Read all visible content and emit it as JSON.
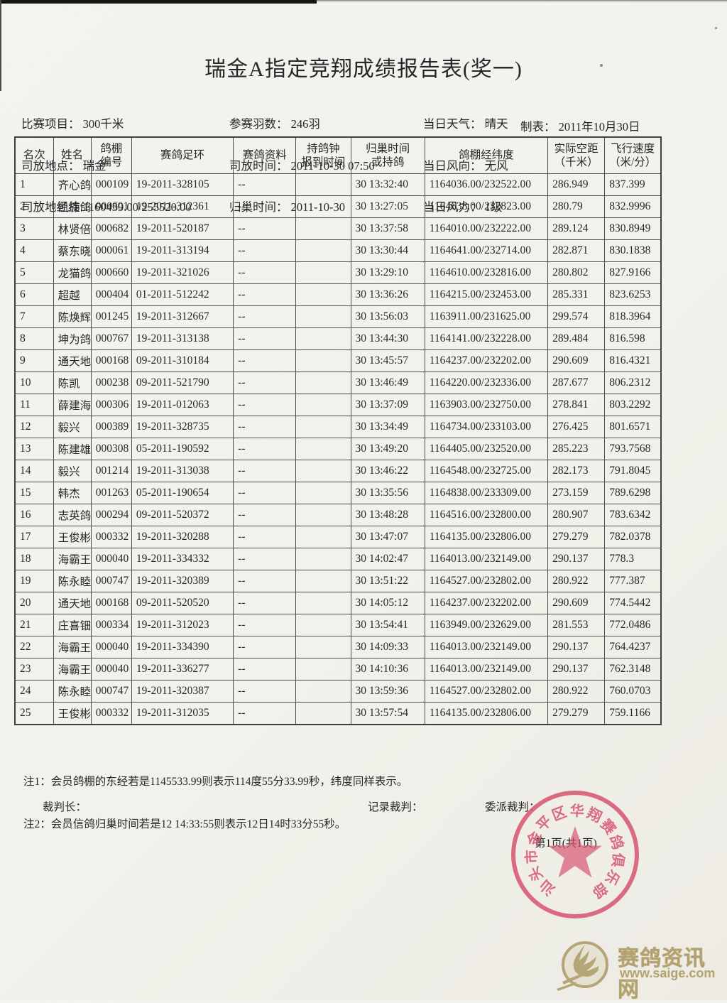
{
  "page": {
    "title": "瑞金A指定竞翔成绩报告表(奖一)",
    "page_number": "第1页(共1页)"
  },
  "info": {
    "r1c1": "比赛项目： 300千米",
    "r2c1": "司放地点： 瑞金",
    "r3c1": "司放地经纬:1160439.00/255520.00",
    "r1c2": "参赛羽数： 246羽",
    "r2c2": "司放时间： 2011-10-30 07:50",
    "r3c2": "归巢时间： 2011-10-30",
    "r1c3": "当日天气： 晴天",
    "r2c3": "当日风向： 无风",
    "r3c3": "当日风力： 1级",
    "made_on": "制表： 2011年10月30日"
  },
  "table": {
    "headers": [
      "名次",
      "姓名",
      "鸽棚\n编号",
      "赛鸽足环",
      "赛鸽资料",
      "持鸽钟\n报到时间",
      "归巢时间\n或持鸽",
      "鸽棚经纬度",
      "实际空距\n（千米）",
      "飞行速度\n（米/分）"
    ],
    "rows": [
      [
        "1",
        "齐心鸽",
        "000109",
        "19-2011-328105",
        "--",
        "",
        "30 13:32:40",
        "1164036.00/232522.00",
        "286.949",
        "837.399"
      ],
      [
        "2",
        "凯旋鸽",
        "000601",
        "19-2011-312361",
        "--",
        "",
        "30 13:27:05",
        "1164638.00/232823.00",
        "280.79",
        "832.9996"
      ],
      [
        "3",
        "林贤倍",
        "000682",
        "19-2011-520187",
        "--",
        "",
        "30 13:37:58",
        "1164010.00/232222.00",
        "289.124",
        "830.8949"
      ],
      [
        "4",
        "蔡东晓",
        "000061",
        "19-2011-313194",
        "--",
        "",
        "30 13:30:44",
        "1164641.00/232714.00",
        "282.871",
        "830.1838"
      ],
      [
        "5",
        "龙猫鸽",
        "000660",
        "19-2011-321026",
        "--",
        "",
        "30 13:29:10",
        "1164610.00/232816.00",
        "280.802",
        "827.9166"
      ],
      [
        "6",
        "超越",
        "000404",
        "01-2011-512242",
        "--",
        "",
        "30 13:36:26",
        "1164215.00/232453.00",
        "285.331",
        "823.6253"
      ],
      [
        "7",
        "陈焕辉",
        "001245",
        "19-2011-312667",
        "--",
        "",
        "30 13:56:03",
        "1163911.00/231625.00",
        "299.574",
        "818.3964"
      ],
      [
        "8",
        "坤为鸽",
        "000767",
        "19-2011-313138",
        "--",
        "",
        "30 13:44:30",
        "1164141.00/232228.00",
        "289.484",
        "816.598"
      ],
      [
        "9",
        "通天地",
        "000168",
        "09-2011-310184",
        "--",
        "",
        "30 13:45:57",
        "1164237.00/232202.00",
        "290.609",
        "816.4321"
      ],
      [
        "10",
        "陈凯",
        "000238",
        "09-2011-521790",
        "--",
        "",
        "30 13:46:49",
        "1164220.00/232336.00",
        "287.677",
        "806.2312"
      ],
      [
        "11",
        "薛建海",
        "000306",
        "19-2011-012063",
        "--",
        "",
        "30 13:37:09",
        "1163903.00/232750.00",
        "278.841",
        "803.2292"
      ],
      [
        "12",
        "毅兴",
        "000389",
        "19-2011-328735",
        "--",
        "",
        "30 13:34:49",
        "1164734.00/233103.00",
        "276.425",
        "801.6571"
      ],
      [
        "13",
        "陈建雄",
        "000308",
        "05-2011-190592",
        "--",
        "",
        "30 13:49:20",
        "1164405.00/232520.00",
        "285.223",
        "793.7568"
      ],
      [
        "14",
        "毅兴",
        "001214",
        "19-2011-313038",
        "--",
        "",
        "30 13:46:22",
        "1164548.00/232725.00",
        "282.173",
        "791.8045"
      ],
      [
        "15",
        "韩杰",
        "001263",
        "05-2011-190654",
        "--",
        "",
        "30 13:35:56",
        "1164838.00/233309.00",
        "273.159",
        "789.6298"
      ],
      [
        "16",
        "志英鸽",
        "000294",
        "09-2011-520372",
        "--",
        "",
        "30 13:48:28",
        "1164516.00/232800.00",
        "280.907",
        "783.6342"
      ],
      [
        "17",
        "王俊彬",
        "000332",
        "19-2011-320288",
        "--",
        "",
        "30 13:47:07",
        "1164135.00/232806.00",
        "279.279",
        "782.0378"
      ],
      [
        "18",
        "海霸王",
        "000040",
        "19-2011-334332",
        "--",
        "",
        "30 14:02:47",
        "1164013.00/232149.00",
        "290.137",
        "778.3"
      ],
      [
        "19",
        "陈永睦",
        "000747",
        "19-2011-320389",
        "--",
        "",
        "30 13:51:22",
        "1164527.00/232802.00",
        "280.922",
        "777.387"
      ],
      [
        "20",
        "通天地",
        "000168",
        "09-2011-520520",
        "--",
        "",
        "30 14:05:12",
        "1164237.00/232202.00",
        "290.609",
        "774.5442"
      ],
      [
        "21",
        "庄喜钿",
        "000334",
        "19-2011-312023",
        "--",
        "",
        "30 13:54:41",
        "1163949.00/232629.00",
        "281.553",
        "772.0486"
      ],
      [
        "22",
        "海霸王",
        "000040",
        "19-2011-334390",
        "--",
        "",
        "30 14:09:33",
        "1164013.00/232149.00",
        "290.137",
        "764.4237"
      ],
      [
        "23",
        "海霸王",
        "000040",
        "19-2011-336277",
        "--",
        "",
        "30 14:10:36",
        "1164013.00/232149.00",
        "290.137",
        "762.3148"
      ],
      [
        "24",
        "陈永睦",
        "000747",
        "19-2011-320387",
        "--",
        "",
        "30 13:59:36",
        "1164527.00/232802.00",
        "280.922",
        "760.0703"
      ],
      [
        "25",
        "王俊彬",
        "000332",
        "19-2011-312035",
        "--",
        "",
        "30 13:57:54",
        "1164135.00/232806.00",
        "279.279",
        "759.1166"
      ]
    ]
  },
  "notes": [
    "注1：会员鸽棚的东经若是1145533.99则表示114度55分33.99秒，纬度同样表示。",
    "注2：会员信鸽归巢时间若是12 14:33:55则表示12日14时33分55秒。"
  ],
  "signatures": {
    "chief": "裁判长：",
    "recorder": "记录裁判：",
    "delegate": "委派裁判："
  },
  "stamp": {
    "text": "汕头市金平区华翔赛鸽俱乐部",
    "color": "#d6546f"
  },
  "watermark": {
    "site_name": "赛鸽资讯网",
    "site_url": "www.saige.com",
    "color": "#b3a26d"
  }
}
